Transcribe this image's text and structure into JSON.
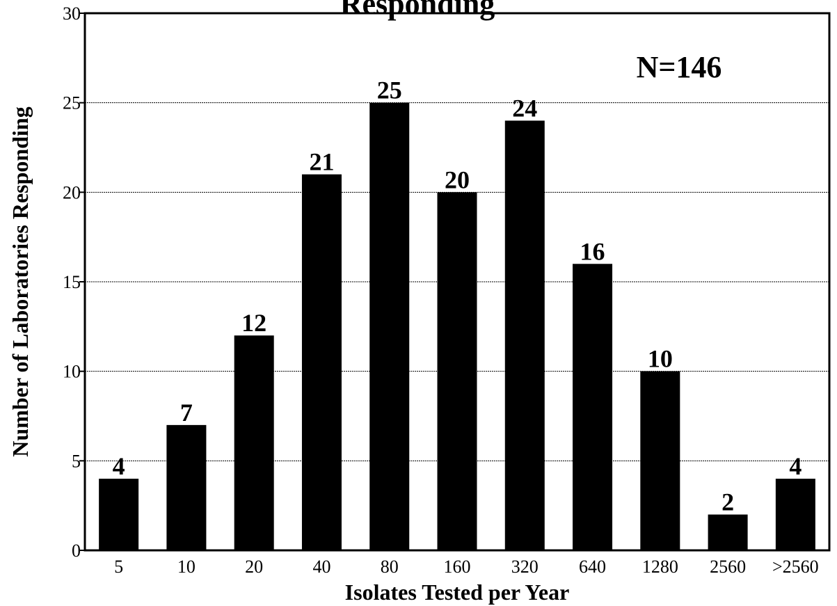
{
  "chart_data": {
    "type": "bar",
    "title": "Responding",
    "xlabel": "Isolates Tested per Year",
    "ylabel": "Number of Laboratories Responding",
    "categories": [
      "5",
      "10",
      "20",
      "40",
      "80",
      "160",
      "320",
      "640",
      "1280",
      "2560",
      ">2560"
    ],
    "values": [
      4,
      7,
      12,
      21,
      25,
      20,
      24,
      16,
      10,
      2,
      4
    ],
    "data_labels": [
      "4",
      "7",
      "12",
      "21",
      "25",
      "20",
      "24",
      "16",
      "10",
      "2",
      "4"
    ],
    "ylim": [
      0,
      30
    ],
    "yticks": [
      0,
      5,
      10,
      15,
      20,
      25,
      30
    ],
    "grid": true,
    "annotation": "N=146",
    "bar_color": "#000000"
  }
}
